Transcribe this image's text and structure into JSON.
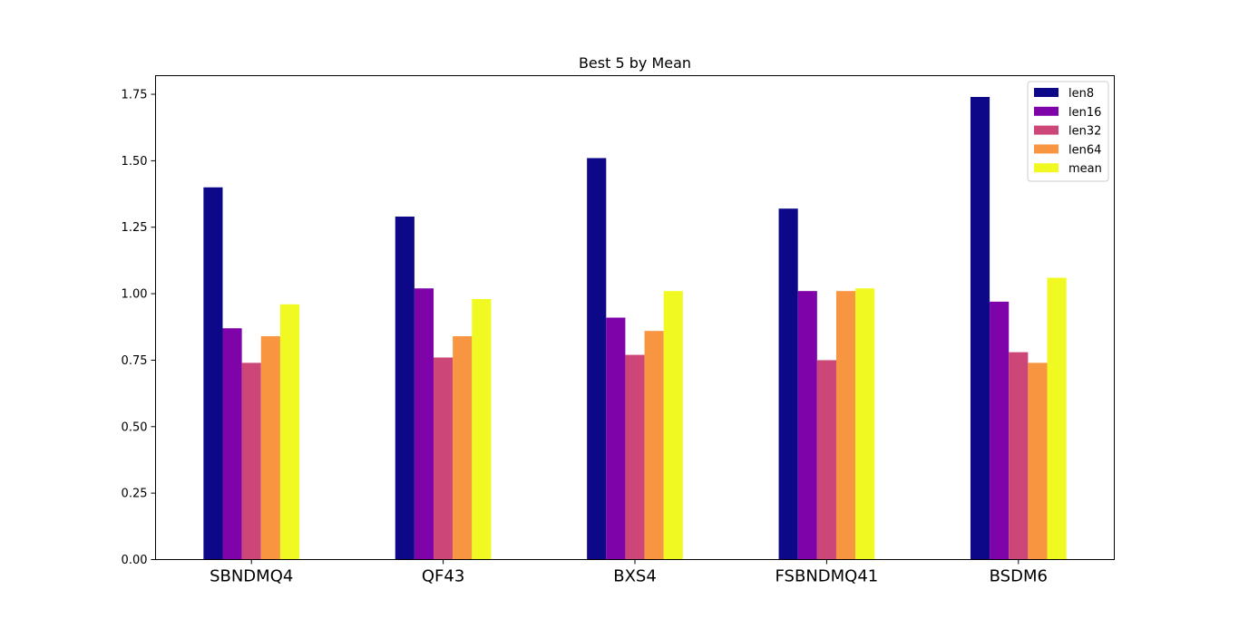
{
  "chart_data": {
    "type": "bar",
    "title": "Best 5 by Mean",
    "xlabel": "",
    "ylabel": "",
    "categories": [
      "SBNDMQ4",
      "QF43",
      "BXS4",
      "FSBNDMQ41",
      "BSDM6"
    ],
    "series": [
      {
        "name": "len8",
        "color": "#0d0887",
        "values": [
          1.4,
          1.29,
          1.51,
          1.32,
          1.74
        ]
      },
      {
        "name": "len16",
        "color": "#7e03a8",
        "values": [
          0.87,
          1.02,
          0.91,
          1.01,
          0.97
        ]
      },
      {
        "name": "len32",
        "color": "#cc4778",
        "values": [
          0.74,
          0.76,
          0.77,
          0.75,
          0.78
        ]
      },
      {
        "name": "len64",
        "color": "#f89540",
        "values": [
          0.84,
          0.84,
          0.86,
          1.01,
          0.74
        ]
      },
      {
        "name": "mean",
        "color": "#f0f921",
        "values": [
          0.96,
          0.98,
          1.01,
          1.02,
          1.06
        ]
      }
    ],
    "ylim": [
      0,
      1.82
    ],
    "yticks": [
      "0.00",
      "0.25",
      "0.50",
      "0.75",
      "1.00",
      "1.25",
      "1.50",
      "1.75"
    ],
    "grid": false,
    "legend_position": "top-right"
  }
}
